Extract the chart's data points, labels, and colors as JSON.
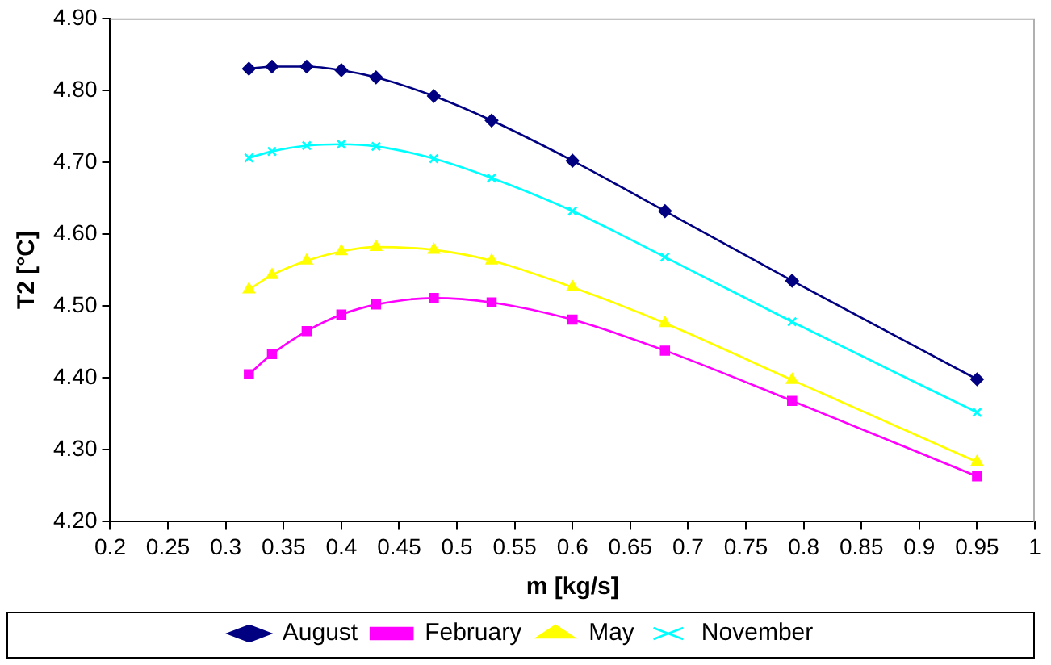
{
  "chart_data": {
    "type": "line",
    "xlabel": "m [kg/s]",
    "ylabel": "T2 [°C]",
    "x": [
      0.32,
      0.34,
      0.37,
      0.4,
      0.43,
      0.48,
      0.53,
      0.6,
      0.68,
      0.79,
      0.95
    ],
    "series": [
      {
        "name": "August",
        "color": "#000080",
        "marker": "diamond",
        "values": [
          4.83,
          4.833,
          4.833,
          4.828,
          4.818,
          4.792,
          4.758,
          4.702,
          4.632,
          4.535,
          4.398
        ]
      },
      {
        "name": "February",
        "color": "#ff00ff",
        "marker": "square",
        "values": [
          4.405,
          4.433,
          4.465,
          4.488,
          4.502,
          4.511,
          4.505,
          4.481,
          4.438,
          4.368,
          4.263
        ]
      },
      {
        "name": "May",
        "color": "#ffff00",
        "marker": "triangle",
        "values": [
          4.523,
          4.543,
          4.563,
          4.576,
          4.582,
          4.578,
          4.563,
          4.526,
          4.476,
          4.397,
          4.283
        ]
      },
      {
        "name": "November",
        "color": "#00ffff",
        "marker": "cross",
        "values": [
          4.706,
          4.715,
          4.723,
          4.725,
          4.722,
          4.705,
          4.678,
          4.632,
          4.568,
          4.478,
          4.352
        ]
      }
    ],
    "xlim": [
      0.2,
      1
    ],
    "xticks": [
      0.2,
      0.25,
      0.3,
      0.35,
      0.4,
      0.45,
      0.5,
      0.55,
      0.6,
      0.65,
      0.7,
      0.75,
      0.8,
      0.85,
      0.9,
      0.95,
      1
    ],
    "ylim": [
      4.2,
      4.9
    ],
    "yticks": [
      {
        "value": 4.2,
        "label": "4.20"
      },
      {
        "value": 4.3,
        "label": "4.30"
      },
      {
        "value": 4.4,
        "label": "4.40"
      },
      {
        "value": 4.5,
        "label": "4.50"
      },
      {
        "value": 4.6,
        "label": "4.60"
      },
      {
        "value": 4.7,
        "label": "4.70"
      },
      {
        "value": 4.8,
        "label": "4.80"
      },
      {
        "value": 4.9,
        "label": "4.90"
      }
    ],
    "grid": false,
    "legend": "bottom"
  }
}
